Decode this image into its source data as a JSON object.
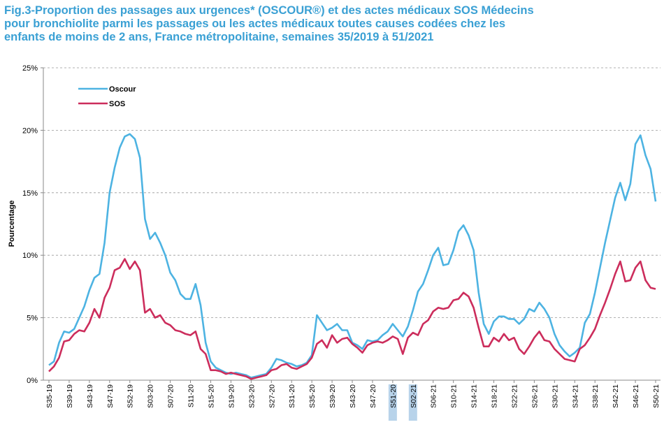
{
  "chart_data": {
    "type": "line",
    "title": [
      "Fig.3-Proportion des passages aux urgences* (OSCOUR®) et des actes médicaux SOS Médecins",
      "pour bronchiolite parmi les passages ou les actes médicaux toutes causes codées chez les",
      "enfants de moins de 2 ans,  France métropolitaine, semaines 35/2019 à 51/2021"
    ],
    "y_label": "Pourcentage",
    "categories": [
      "S35-19",
      null,
      null,
      null,
      "S39-19",
      null,
      null,
      null,
      "S43-19",
      null,
      null,
      null,
      "S47-19",
      null,
      null,
      null,
      "S52-19",
      null,
      null,
      null,
      "S03-20",
      null,
      null,
      null,
      "S07-20",
      null,
      null,
      null,
      "S11-20",
      null,
      null,
      null,
      "S15-20",
      null,
      null,
      null,
      "S19-20",
      null,
      null,
      null,
      "S23-20",
      null,
      null,
      null,
      "S27-20",
      null,
      null,
      null,
      "S31-20",
      null,
      null,
      null,
      "S35-20",
      null,
      null,
      null,
      "S39-20",
      null,
      null,
      null,
      "S43-20",
      null,
      null,
      null,
      "S47-20",
      null,
      null,
      null,
      "S51-20",
      null,
      null,
      null,
      "S02-21",
      null,
      null,
      null,
      "S06-21",
      null,
      null,
      null,
      "S10-21",
      null,
      null,
      null,
      "S14-21",
      null,
      null,
      null,
      "S18-21",
      null,
      null,
      null,
      "S22-21",
      null,
      null,
      null,
      "S26-21",
      null,
      null,
      null,
      "S30-21",
      null,
      null,
      null,
      "S34-21",
      null,
      null,
      null,
      "S38-21",
      null,
      null,
      null,
      "S42-21",
      null,
      null,
      null,
      "S46-21",
      null,
      null,
      null,
      "S50-21"
    ],
    "highlighted_categories": [
      "S51-20",
      "S02-21"
    ],
    "series": [
      {
        "name": "Oscour",
        "color": "#4db3e2",
        "values": [
          1.2,
          1.5,
          3.0,
          3.9,
          3.8,
          4.1,
          5.0,
          5.9,
          7.2,
          8.2,
          8.5,
          11.0,
          15.0,
          17.0,
          18.6,
          19.5,
          19.7,
          19.3,
          17.8,
          12.9,
          11.3,
          11.8,
          11.0,
          10.0,
          8.6,
          8.0,
          6.9,
          6.5,
          6.5,
          7.7,
          6.0,
          3.0,
          1.5,
          1.0,
          0.8,
          0.6,
          0.5,
          0.6,
          0.5,
          0.4,
          0.2,
          0.3,
          0.4,
          0.5,
          1.0,
          1.7,
          1.6,
          1.4,
          1.3,
          1.1,
          1.2,
          1.4,
          2.0,
          5.2,
          4.6,
          4.0,
          4.2,
          4.5,
          4.0,
          4.0,
          3.0,
          2.8,
          2.5,
          3.2,
          3.1,
          3.2,
          3.6,
          3.9,
          4.5,
          4.0,
          3.5,
          4.3,
          5.6,
          7.1,
          7.7,
          8.8,
          10.0,
          10.6,
          9.2,
          9.3,
          10.4,
          11.9,
          12.4,
          11.6,
          10.4,
          7.0,
          4.5,
          3.7,
          4.7,
          5.1,
          5.1,
          4.9,
          4.9,
          4.5,
          4.9,
          5.7,
          5.5,
          6.2,
          5.7,
          5.0,
          3.7,
          2.8,
          2.3,
          1.9,
          2.2,
          2.6,
          4.6,
          5.3,
          7.0,
          9.0,
          11.0,
          12.8,
          14.6,
          15.8,
          14.4,
          15.7,
          18.9,
          19.6,
          18.0,
          16.9,
          14.3
        ]
      },
      {
        "name": "SOS",
        "color": "#cc2d5c",
        "values": [
          0.7,
          1.1,
          1.8,
          3.1,
          3.2,
          3.7,
          4.0,
          3.9,
          4.6,
          5.7,
          5.0,
          6.6,
          7.4,
          8.8,
          9.0,
          9.7,
          8.9,
          9.5,
          8.8,
          5.4,
          5.7,
          5.0,
          5.2,
          4.6,
          4.4,
          4.0,
          3.9,
          3.7,
          3.6,
          3.9,
          2.5,
          2.1,
          0.8,
          0.8,
          0.7,
          0.5,
          0.6,
          0.5,
          0.4,
          0.3,
          0.1,
          0.2,
          0.3,
          0.4,
          0.8,
          0.9,
          1.2,
          1.3,
          1.0,
          0.9,
          1.1,
          1.3,
          1.8,
          2.9,
          3.2,
          2.6,
          3.6,
          3.0,
          3.3,
          3.4,
          2.9,
          2.6,
          2.2,
          2.8,
          3.0,
          3.1,
          3.0,
          3.2,
          3.5,
          3.3,
          2.1,
          3.4,
          3.8,
          3.6,
          4.5,
          4.8,
          5.5,
          5.8,
          5.7,
          5.8,
          6.4,
          6.5,
          7.0,
          6.7,
          5.8,
          4.2,
          2.7,
          2.7,
          3.4,
          3.1,
          3.7,
          3.2,
          3.4,
          2.5,
          2.1,
          2.7,
          3.4,
          3.9,
          3.2,
          3.1,
          2.5,
          2.1,
          1.7,
          1.6,
          1.5,
          2.5,
          2.8,
          3.4,
          4.1,
          5.2,
          6.2,
          7.3,
          8.5,
          9.5,
          7.9,
          8.0,
          9.0,
          9.5,
          8.0,
          7.4,
          7.3
        ]
      }
    ],
    "ylim": [
      0,
      25
    ],
    "yticks": [
      {
        "value": 0,
        "label": "0%"
      },
      {
        "value": 5,
        "label": "5%"
      },
      {
        "value": 10,
        "label": "10%"
      },
      {
        "value": 15,
        "label": "15%"
      },
      {
        "value": 20,
        "label": "20%"
      },
      {
        "value": 25,
        "label": "25%"
      }
    ],
    "grid": true,
    "legend": "top-left"
  }
}
